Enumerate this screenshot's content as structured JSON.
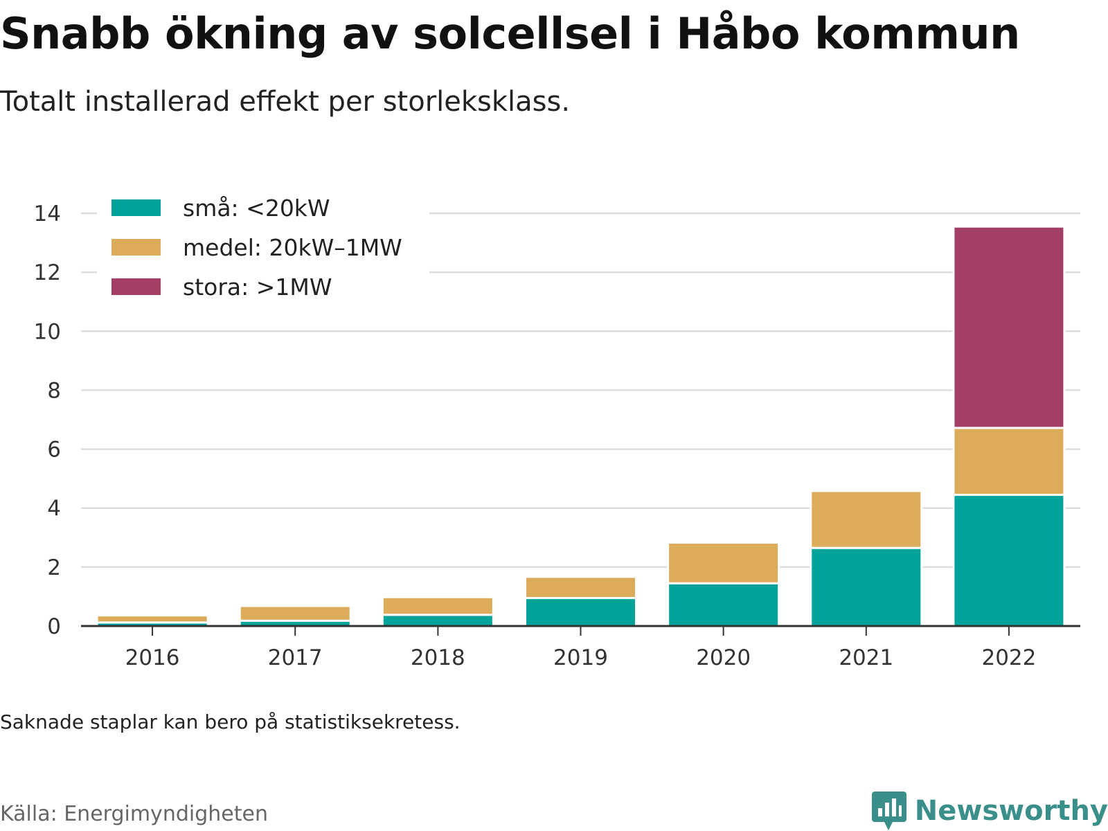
{
  "header": {
    "title": "Snabb ökning av solcellsel i Håbo kommun",
    "subtitle": "Totalt installerad effekt per storleksklass."
  },
  "footer": {
    "note": "Saknade staplar kan bero på statistiksekretess.",
    "source": "Källa: Energimyndigheten",
    "brand": "Newsworthy"
  },
  "colors": {
    "small": "#00a399",
    "medium": "#dcac5a",
    "large": "#a33f67",
    "grid": "#dddddd",
    "axis": "#333333"
  },
  "chart_data": {
    "type": "bar",
    "stacked": true,
    "categories": [
      "2016",
      "2017",
      "2018",
      "2019",
      "2020",
      "2021",
      "2022"
    ],
    "series": [
      {
        "name": "små: <20kW",
        "color": "#00a399",
        "values": [
          0.12,
          0.18,
          0.38,
          0.95,
          1.45,
          2.65,
          4.45
        ]
      },
      {
        "name": "medel: 20kW–1MW",
        "color": "#dcac5a",
        "values": [
          0.24,
          0.5,
          0.6,
          0.72,
          1.38,
          1.93,
          2.27
        ]
      },
      {
        "name": "stora: >1MW",
        "color": "#a33f67",
        "values": [
          0,
          0,
          0,
          0,
          0,
          0,
          6.83
        ]
      }
    ],
    "ylim": [
      0,
      14
    ],
    "yticks": [
      0,
      2,
      4,
      6,
      8,
      10,
      12,
      14
    ],
    "grid": true,
    "legend_position": "top-left"
  }
}
